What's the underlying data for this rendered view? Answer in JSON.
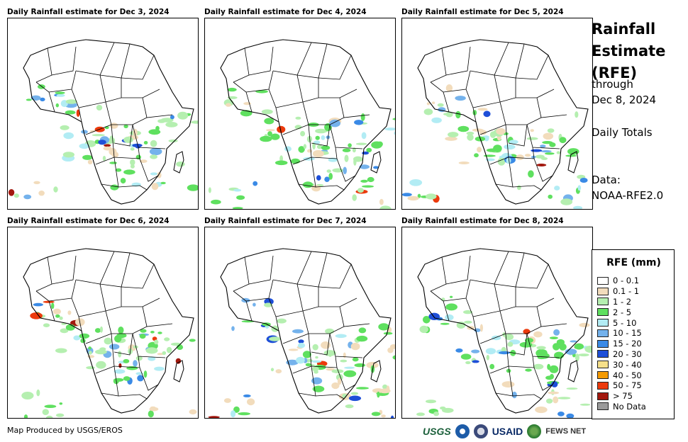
{
  "panels": [
    {
      "title": "Daily Rainfall estimate for Dec 3, 2024"
    },
    {
      "title": "Daily Rainfall estimate for Dec 4, 2024"
    },
    {
      "title": "Daily Rainfall estimate for Dec 5, 2024"
    },
    {
      "title": "Daily Rainfall estimate for Dec 6, 2024"
    },
    {
      "title": "Daily Rainfall estimate for Dec 7, 2024"
    },
    {
      "title": "Daily Rainfall estimate for Dec 8, 2024"
    }
  ],
  "sidebar": {
    "title_line1": "Rainfall",
    "title_line2": "Estimate",
    "title_line3": "(RFE)",
    "through": "through",
    "date": "Dec 8, 2024",
    "totals": "Daily Totals",
    "data_label": "Data:",
    "data_source": "NOAA-RFE2.0"
  },
  "legend": {
    "title": "RFE (mm)",
    "items": [
      {
        "label": "0 - 0.1",
        "color": "#ffffff"
      },
      {
        "label": "0.1 - 1",
        "color": "#f2dcbc"
      },
      {
        "label": "1 - 2",
        "color": "#b5efb0"
      },
      {
        "label": "2 - 5",
        "color": "#5fe05f"
      },
      {
        "label": "5 - 10",
        "color": "#b2ecf4"
      },
      {
        "label": "10 - 15",
        "color": "#74b2ec"
      },
      {
        "label": "15 - 20",
        "color": "#3a8ae6"
      },
      {
        "label": "20 - 30",
        "color": "#1e4fd8"
      },
      {
        "label": "30 - 40",
        "color": "#f6e08a"
      },
      {
        "label": "40 - 50",
        "color": "#f59a00"
      },
      {
        "label": "50 - 75",
        "color": "#ec3a0c"
      },
      {
        "label": "> 75",
        "color": "#a2180e"
      },
      {
        "label": "No Data",
        "color": "#9a9a9a"
      }
    ]
  },
  "footer": {
    "credit": "Map Produced by USGS/EROS",
    "logos": {
      "usgs": "USGS",
      "usaid": "USAID",
      "fews": "FEWS NET"
    }
  }
}
